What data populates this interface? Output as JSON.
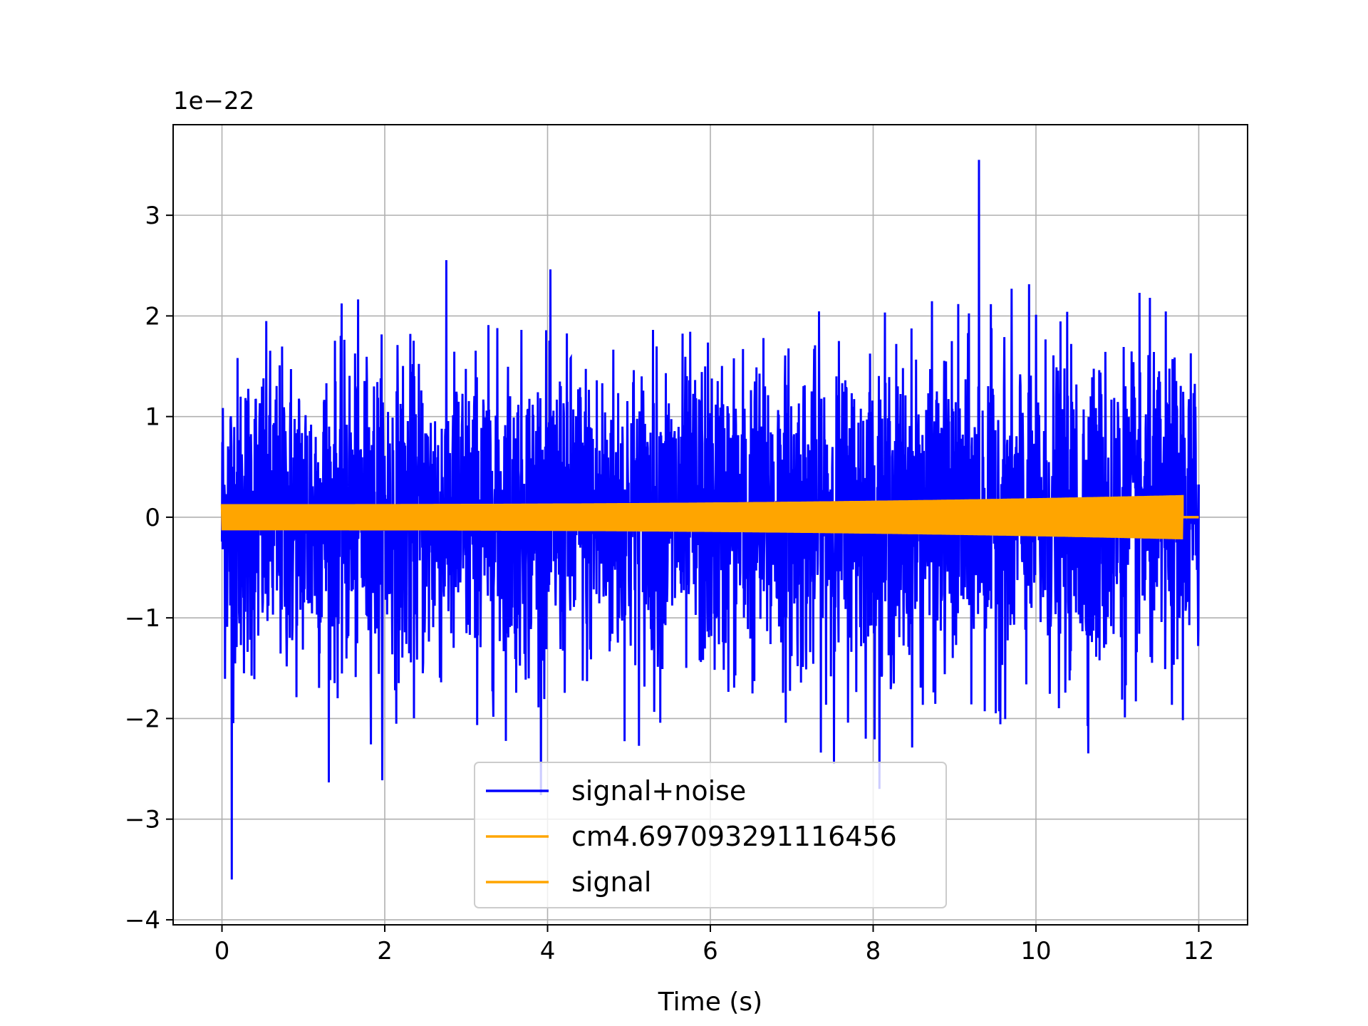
{
  "chart_data": {
    "type": "line",
    "title": "",
    "xlabel": "Time (s)",
    "ylabel": "",
    "y_offset_label": "1e−22",
    "xlim": [
      -0.6,
      12.6
    ],
    "ylim": [
      -4.05,
      3.9
    ],
    "x_ticks": [
      0,
      2,
      4,
      6,
      8,
      10,
      12
    ],
    "x_tick_labels": [
      "0",
      "2",
      "4",
      "6",
      "8",
      "10",
      "12"
    ],
    "y_ticks": [
      -4,
      -3,
      -2,
      -1,
      0,
      1,
      2,
      3
    ],
    "y_tick_labels": [
      "−4",
      "−3",
      "−2",
      "−1",
      "0",
      "1",
      "2",
      "3"
    ],
    "grid": true,
    "legend_position": "lower center",
    "series": [
      {
        "name": "signal+noise",
        "color": "#0000ff",
        "description_of_values": "noise band",
        "x_range": [
          0,
          12
        ],
        "typical_abs_max": 2.2,
        "peak_max": 3.55,
        "peak_max_x": 9.3,
        "peak_min": -3.6,
        "peak_min_x": 0.12
      },
      {
        "name": "cm4.697093291116456",
        "color": "#ffa500",
        "x_range": [
          0,
          11.8
        ],
        "amplitude_start": 0.13,
        "amplitude_end": 0.22
      },
      {
        "name": "signal",
        "color": "#ffa500",
        "x_range": [
          0,
          11.8
        ],
        "amplitude_start": 0.13,
        "amplitude_end": 0.22,
        "trailing_zero_x": [
          11.8,
          12
        ]
      }
    ]
  }
}
